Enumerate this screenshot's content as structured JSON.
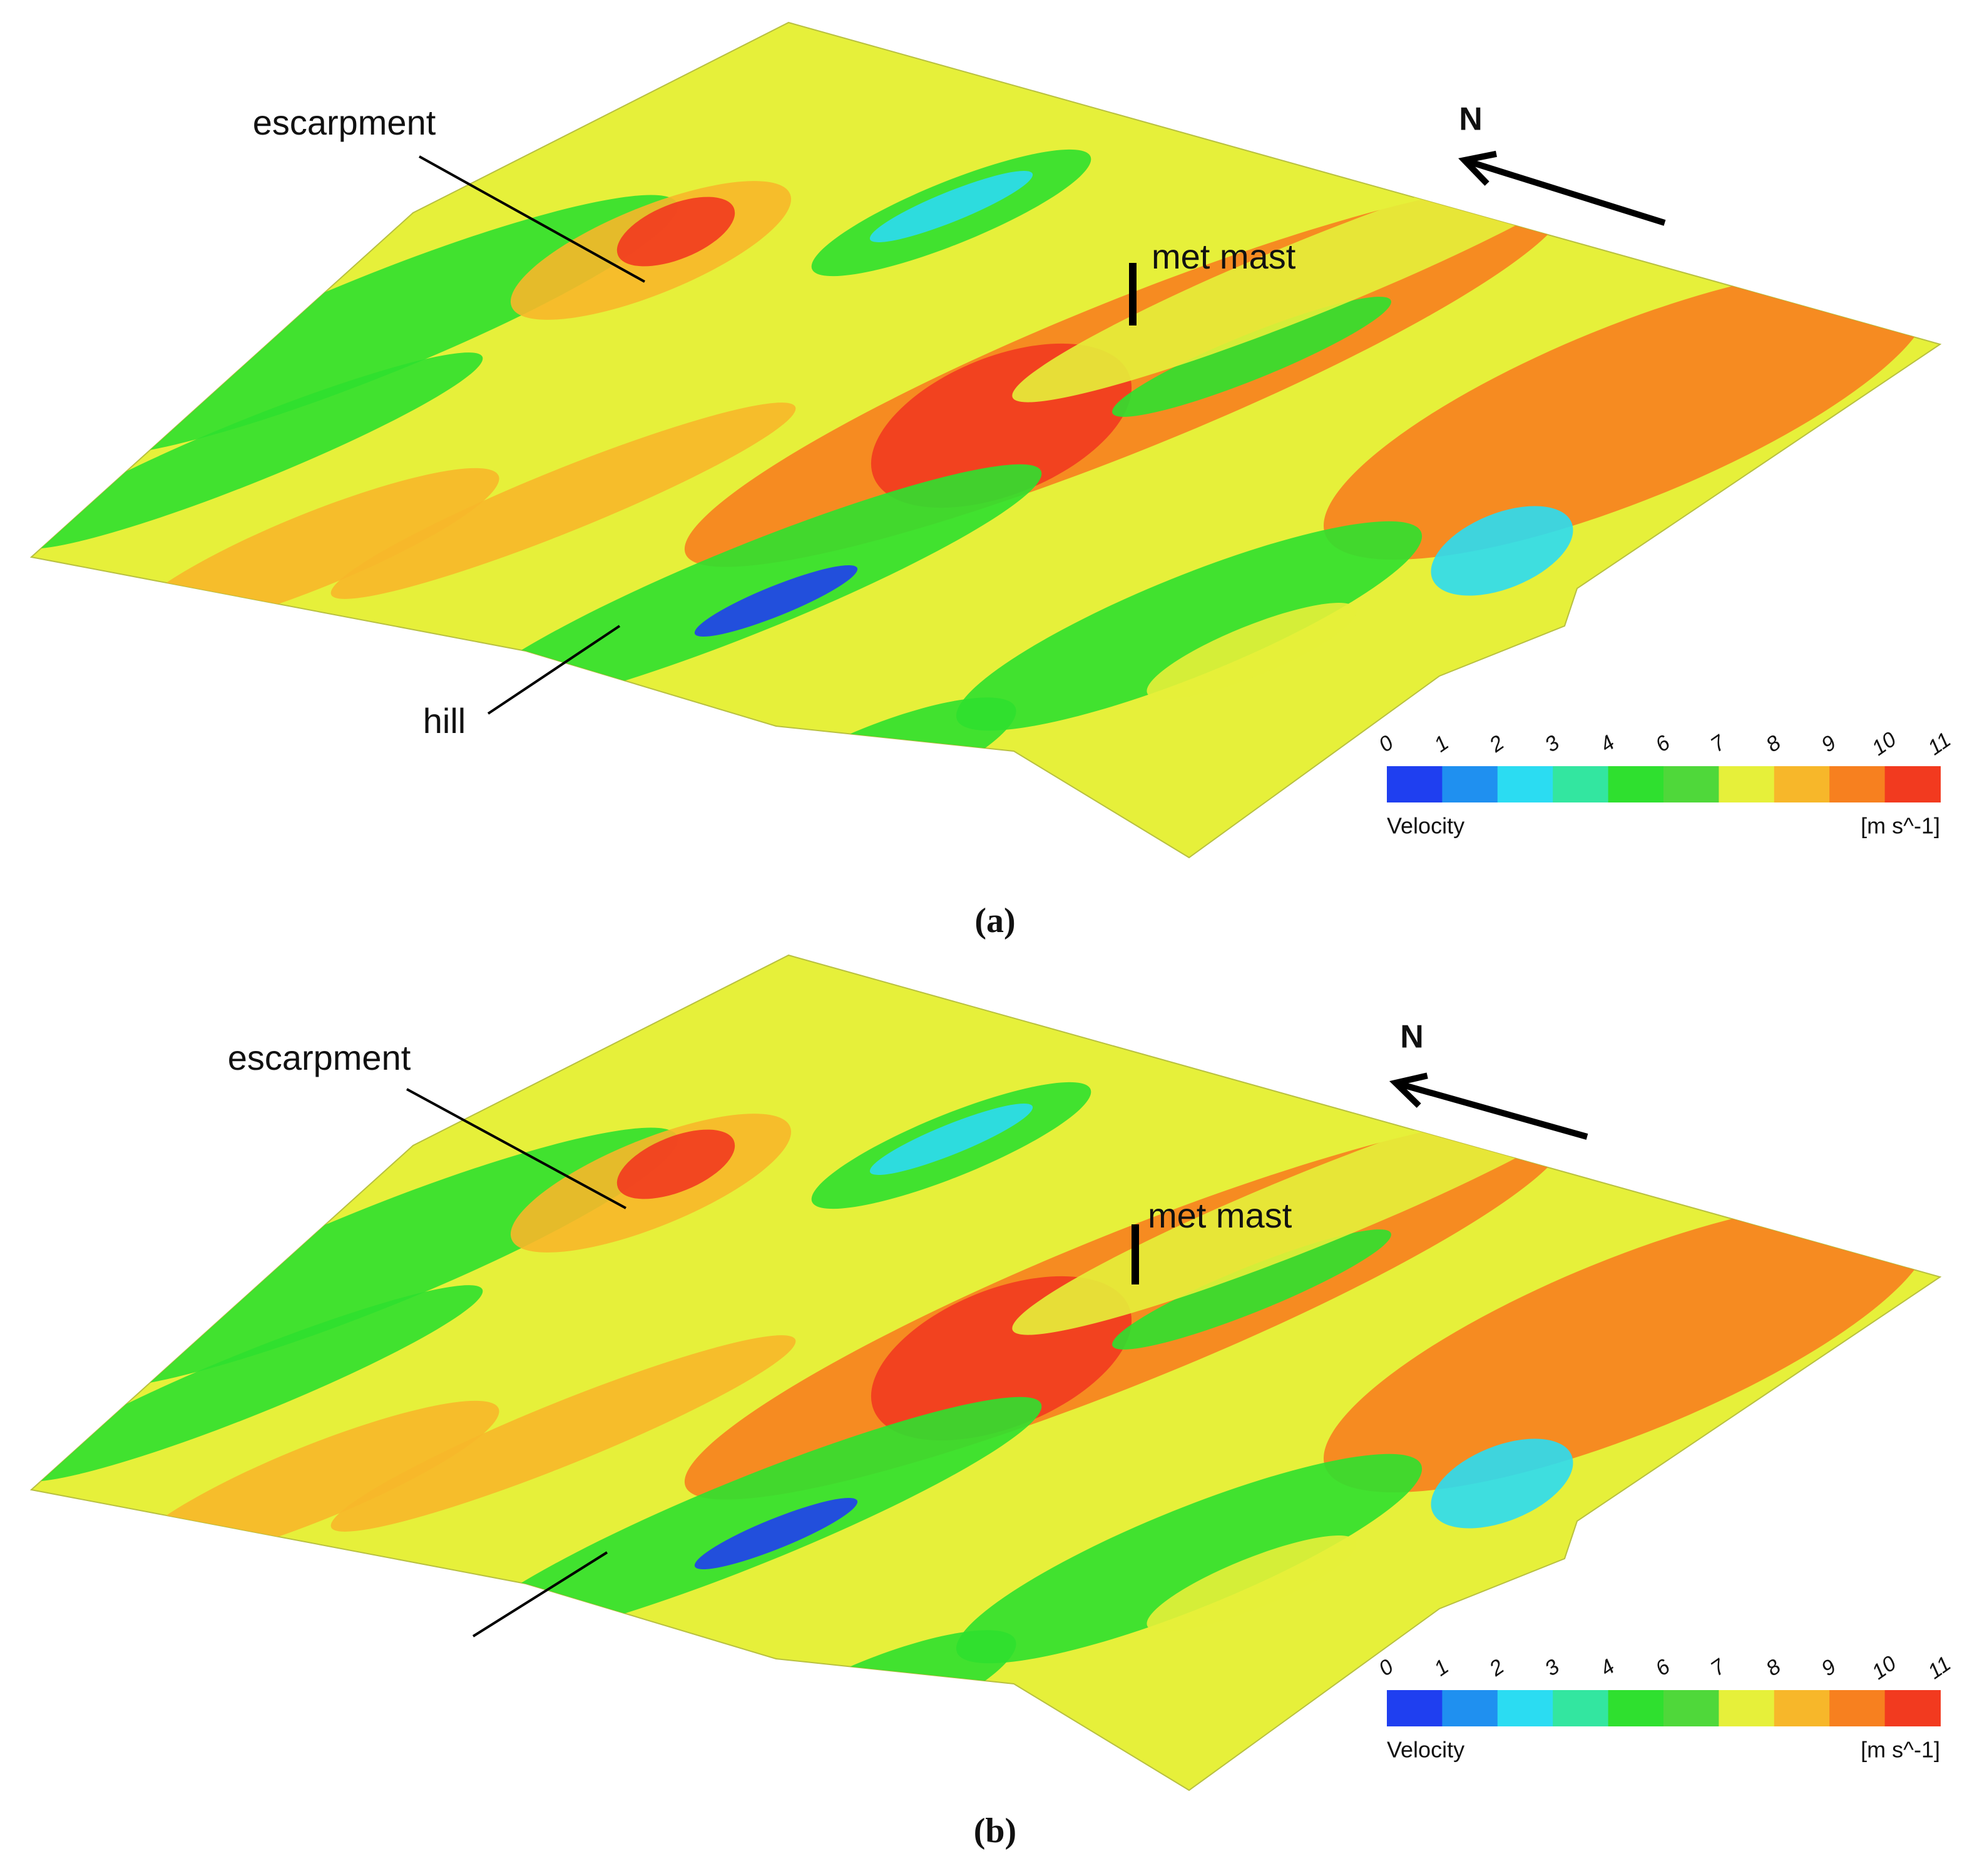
{
  "panels": [
    {
      "caption": "(a)",
      "labels": {
        "escarpment": "escarpment",
        "met_mast": "met mast",
        "north": "N",
        "hill": "hill"
      },
      "colorbar": {
        "ticks": [
          0,
          1,
          2,
          3,
          4,
          6,
          7,
          8,
          9,
          10,
          11
        ],
        "colors": [
          "#1f3ff0",
          "#1f90f0",
          "#2bdcf2",
          "#33e6a0",
          "#2fe02f",
          "#4fd83a",
          "#e6f03a",
          "#f7b72a",
          "#f7801f",
          "#f23a1f"
        ],
        "label": "Velocity",
        "unit": "[m s^-1]"
      }
    },
    {
      "caption": "(b)",
      "labels": {
        "escarpment": "escarpment",
        "met_mast": "met mast",
        "north": "N"
      },
      "colorbar": {
        "ticks": [
          0,
          1,
          2,
          3,
          4,
          6,
          7,
          8,
          9,
          10,
          11
        ],
        "colors": [
          "#1f3ff0",
          "#1f90f0",
          "#2bdcf2",
          "#33e6a0",
          "#2fe02f",
          "#4fd83a",
          "#e6f03a",
          "#f7b72a",
          "#f7801f",
          "#f23a1f"
        ],
        "label": "Velocity",
        "unit": "[m s^-1]"
      }
    }
  ]
}
